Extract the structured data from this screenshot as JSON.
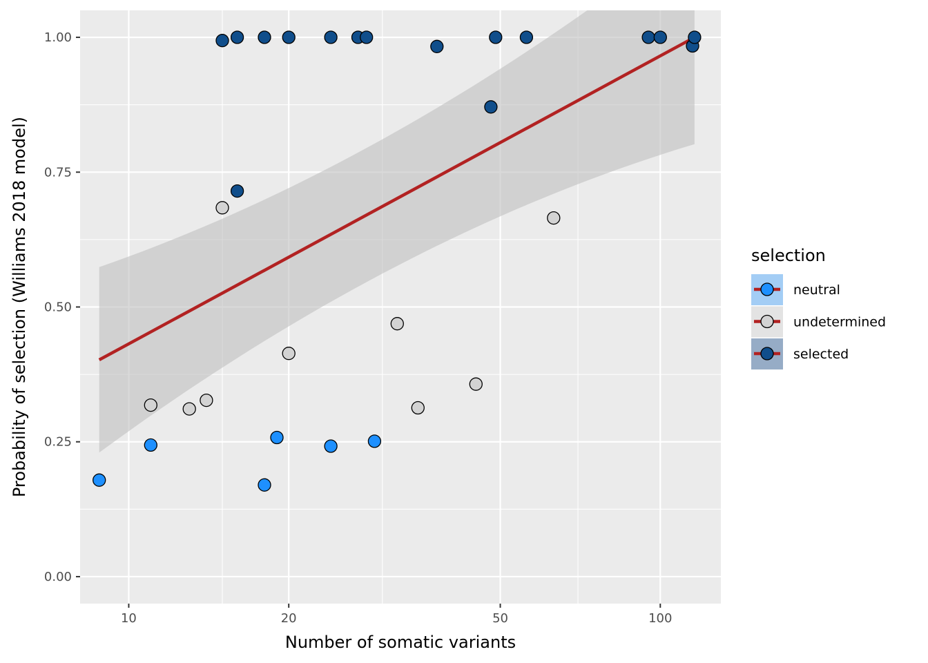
{
  "chart_data": {
    "type": "scatter",
    "x_scale": "log10",
    "xlim": [
      8.1,
      130
    ],
    "ylim": [
      -0.05,
      1.05
    ],
    "xlabel": "Number of somatic variants",
    "ylabel": "Probability of selection (Williams 2018 model)",
    "x_ticks": [
      {
        "value": 10,
        "label": "10"
      },
      {
        "value": 20,
        "label": "20"
      },
      {
        "value": 50,
        "label": "50"
      },
      {
        "value": 100,
        "label": "100"
      }
    ],
    "x_minor_ticks": [
      15,
      30,
      70
    ],
    "y_ticks": [
      {
        "value": 0.0,
        "label": "0.00"
      },
      {
        "value": 0.25,
        "label": "0.25"
      },
      {
        "value": 0.5,
        "label": "0.50"
      },
      {
        "value": 0.75,
        "label": "0.75"
      },
      {
        "value": 1.0,
        "label": "1.00"
      }
    ],
    "y_minor_ticks": [
      0.125,
      0.375,
      0.625,
      0.875
    ],
    "grid": true,
    "legend": {
      "title": "selection",
      "placement": "right",
      "entries": [
        "neutral",
        "undetermined",
        "selected"
      ]
    },
    "colors": {
      "neutral": "#1e90ff",
      "undetermined": "#d3d3d3",
      "selected": "#104e8b",
      "fit_line": "#b22222",
      "ribbon": "#bfbfbf",
      "panel": "#ebebeb",
      "gridline": "#ffffff"
    },
    "fit": {
      "x": [
        8.8,
        116
      ],
      "y": [
        0.402,
        1.0
      ],
      "ribbon_lower": [
        0.231,
        0.802
      ],
      "ribbon_upper": [
        0.574,
        1.198
      ]
    },
    "series": [
      {
        "name": "neutral",
        "points": [
          {
            "x": 8.8,
            "y": 0.179
          },
          {
            "x": 11.0,
            "y": 0.244
          },
          {
            "x": 18.0,
            "y": 0.17
          },
          {
            "x": 19.0,
            "y": 0.258
          },
          {
            "x": 24.0,
            "y": 0.242
          },
          {
            "x": 29.0,
            "y": 0.251
          }
        ]
      },
      {
        "name": "undetermined",
        "points": [
          {
            "x": 11.0,
            "y": 0.318
          },
          {
            "x": 13.0,
            "y": 0.311
          },
          {
            "x": 14.0,
            "y": 0.327
          },
          {
            "x": 15.0,
            "y": 0.684
          },
          {
            "x": 20.0,
            "y": 0.414
          },
          {
            "x": 32.0,
            "y": 0.469
          },
          {
            "x": 35.0,
            "y": 0.313
          },
          {
            "x": 45.0,
            "y": 0.357
          },
          {
            "x": 63.0,
            "y": 0.665
          }
        ]
      },
      {
        "name": "selected",
        "points": [
          {
            "x": 15.0,
            "y": 0.994
          },
          {
            "x": 16.0,
            "y": 0.715
          },
          {
            "x": 16.0,
            "y": 1.0
          },
          {
            "x": 18.0,
            "y": 1.0
          },
          {
            "x": 20.0,
            "y": 1.0
          },
          {
            "x": 24.0,
            "y": 1.0
          },
          {
            "x": 27.0,
            "y": 1.0
          },
          {
            "x": 28.0,
            "y": 1.0
          },
          {
            "x": 38.0,
            "y": 0.983
          },
          {
            "x": 48.0,
            "y": 0.871
          },
          {
            "x": 49.0,
            "y": 1.0
          },
          {
            "x": 56.0,
            "y": 1.0
          },
          {
            "x": 95.0,
            "y": 1.0
          },
          {
            "x": 100.0,
            "y": 1.0
          },
          {
            "x": 115.0,
            "y": 0.984
          },
          {
            "x": 116.0,
            "y": 1.0
          }
        ]
      }
    ]
  }
}
